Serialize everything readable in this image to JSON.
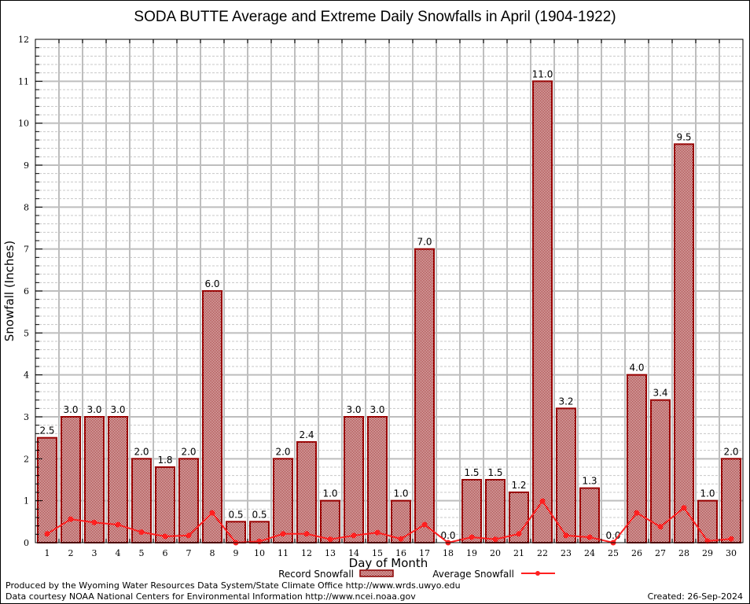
{
  "chart_data": {
    "type": "bar",
    "title": "SODA BUTTE Average and Extreme Daily Snowfalls in April (1904-1922)",
    "xlabel": "Day of Month",
    "ylabel": "Snowfall (Inches)",
    "ylim": [
      0,
      12
    ],
    "yticks": [
      "0",
      "1",
      "2",
      "3",
      "4",
      "5",
      "6",
      "7",
      "8",
      "9",
      "10",
      "11",
      "12"
    ],
    "grid": true,
    "legend_position": "bottom-center",
    "categories": [
      "1",
      "2",
      "3",
      "4",
      "5",
      "6",
      "7",
      "8",
      "9",
      "10",
      "11",
      "12",
      "13",
      "14",
      "15",
      "16",
      "17",
      "18",
      "19",
      "20",
      "21",
      "22",
      "23",
      "24",
      "25",
      "26",
      "27",
      "28",
      "29",
      "30"
    ],
    "series": [
      {
        "name": "Record Snowfall",
        "type": "bar",
        "color": "#990000",
        "values": [
          2.5,
          3.0,
          3.0,
          3.0,
          2.0,
          1.8,
          2.0,
          6.0,
          0.5,
          0.5,
          2.0,
          2.4,
          1.0,
          3.0,
          3.0,
          1.0,
          7.0,
          0.0,
          1.5,
          1.5,
          1.2,
          11.0,
          3.2,
          1.3,
          0.0,
          4.0,
          3.4,
          9.5,
          1.0,
          2.0
        ],
        "labels": [
          "2.5",
          "3.0",
          "3.0",
          "3.0",
          "2.0",
          "1.8",
          "2.0",
          "6.0",
          "0.5",
          "0.5",
          "2.0",
          "2.4",
          "1.0",
          "3.0",
          "3.0",
          "1.0",
          "7.0",
          "0.0",
          "1.5",
          "1.5",
          "1.2",
          "11.0",
          "3.2",
          "1.3",
          "0.0",
          "4.0",
          "3.4",
          "9.5",
          "1.0",
          "2.0"
        ]
      },
      {
        "name": "Average Snowfall",
        "type": "line",
        "color": "#ff2020",
        "values": [
          0.21,
          0.56,
          0.48,
          0.43,
          0.25,
          0.15,
          0.17,
          0.71,
          0.0,
          0.03,
          0.21,
          0.21,
          0.08,
          0.17,
          0.24,
          0.09,
          0.43,
          0.0,
          0.13,
          0.08,
          0.21,
          0.99,
          0.17,
          0.13,
          0.0,
          0.71,
          0.38,
          0.83,
          0.04,
          0.09
        ]
      }
    ]
  },
  "footer": {
    "produced_by": "Produced by the Wyoming Water Resources Data System/State Climate Office http://www.wrds.uwyo.edu",
    "courtesy": "Data courtesy NOAA National Centers for Environmental Information http://www.ncei.noaa.gov",
    "created": "Created: 26-Sep-2024"
  }
}
